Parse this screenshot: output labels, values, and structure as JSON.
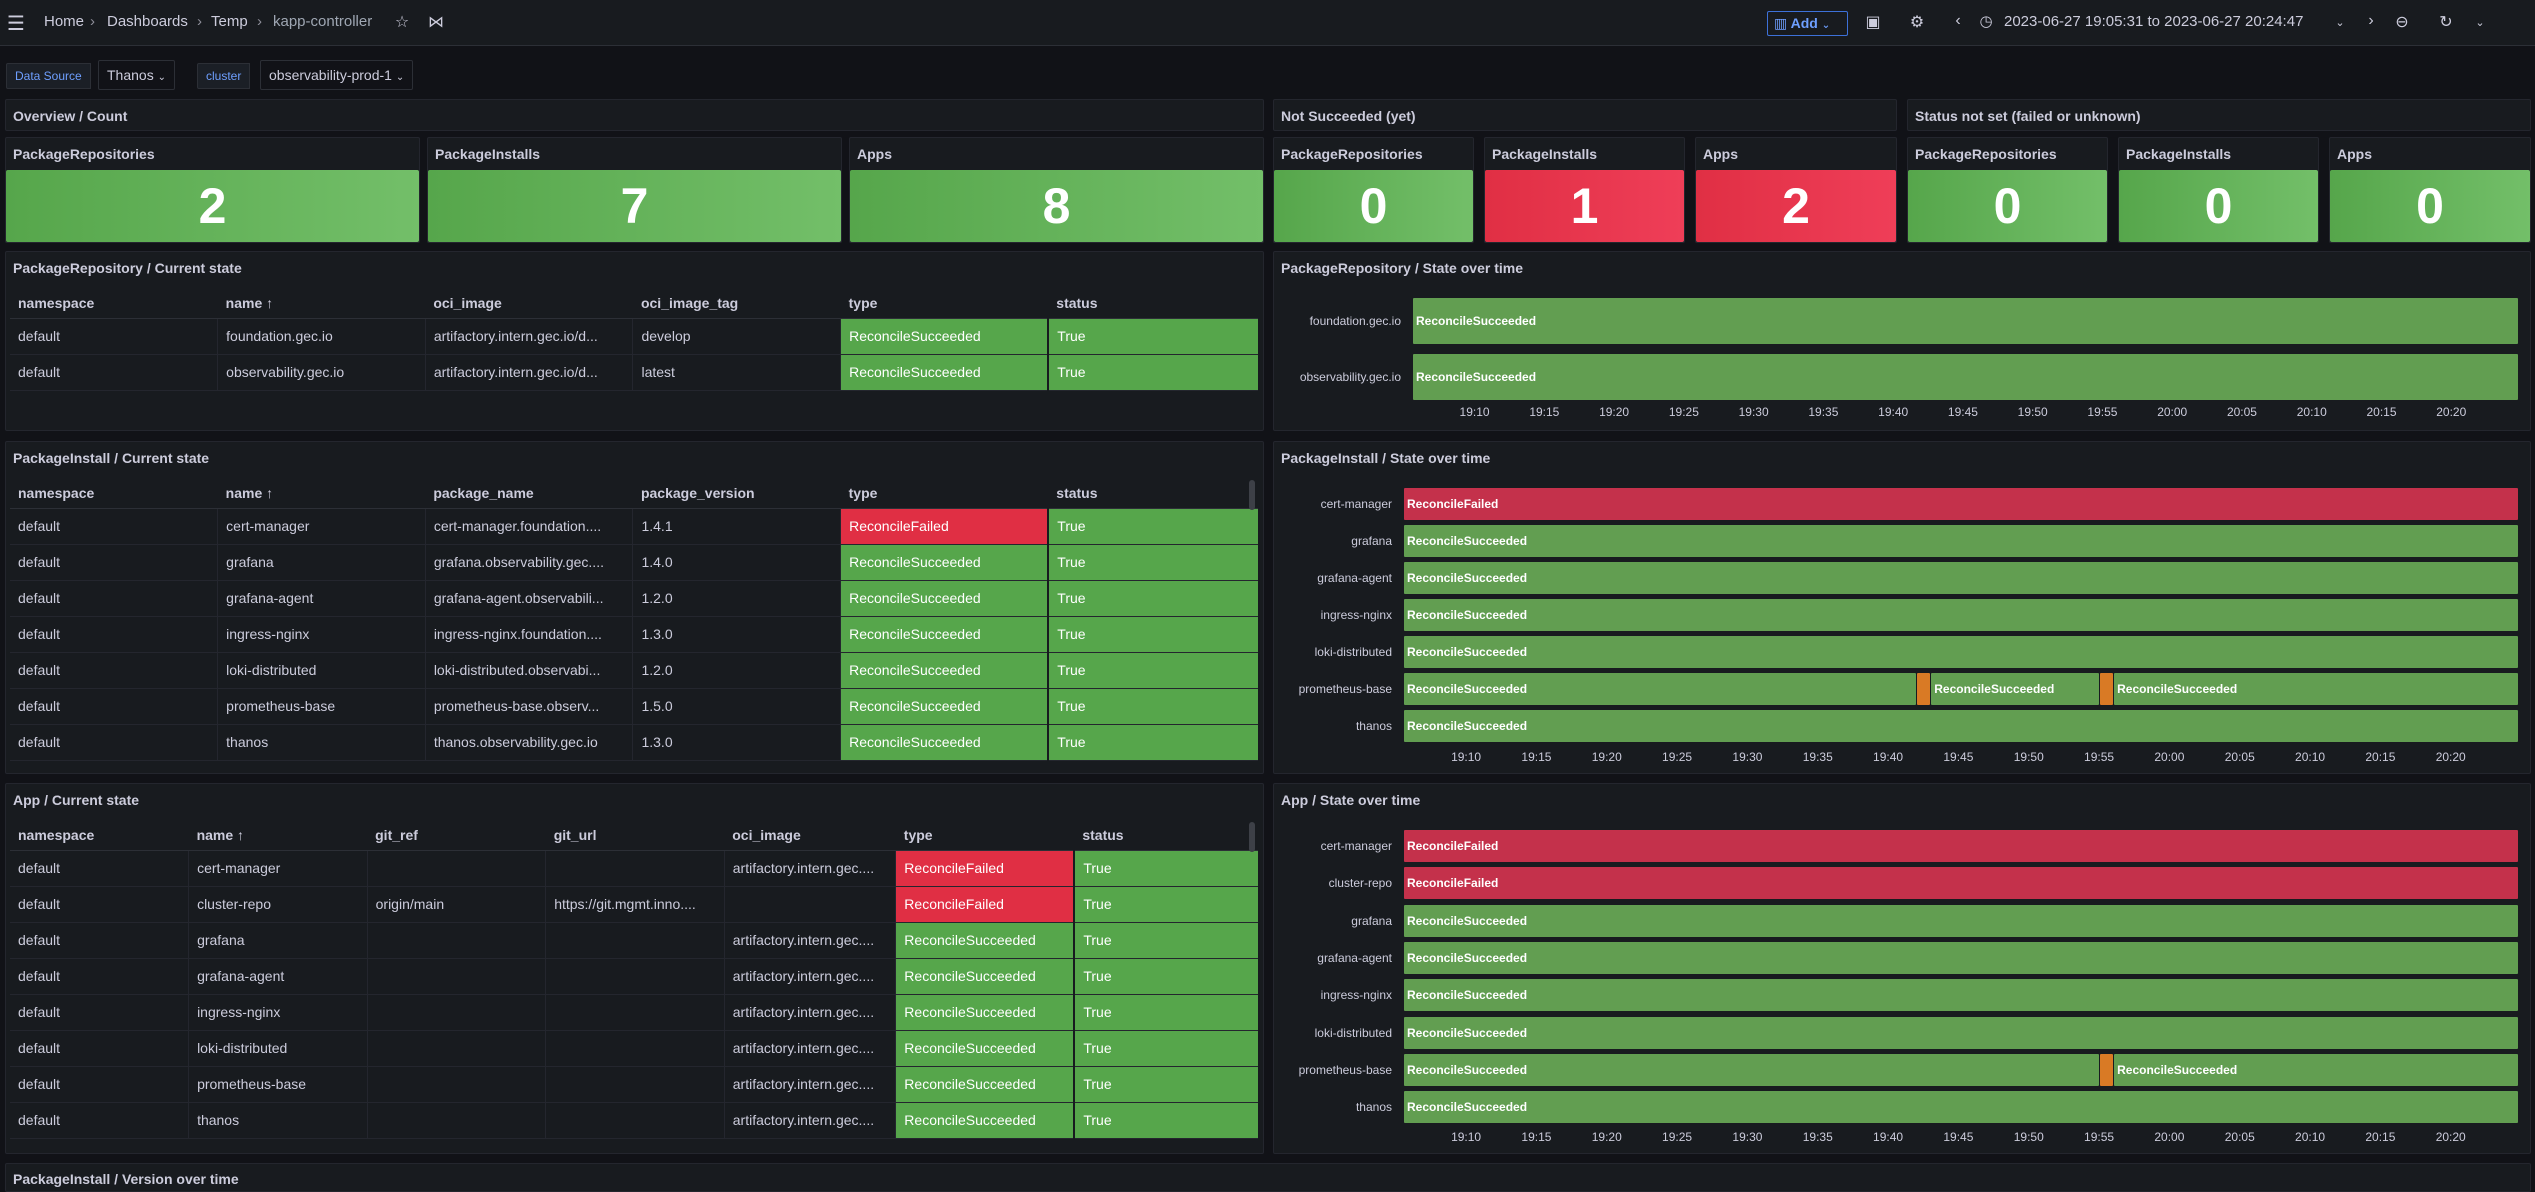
{
  "topbar": {
    "breadcrumb": [
      "Home",
      "Dashboards",
      "Temp",
      "kapp-controller"
    ],
    "add_label": "Add",
    "time_range": "2023-06-27 19:05:31 to 2023-06-27 20:24:47"
  },
  "variables": [
    {
      "label": "Data Source",
      "value": "Thanos"
    },
    {
      "label": "cluster",
      "value": "observability-prod-1"
    }
  ],
  "rows": {
    "overview": "Overview / Count",
    "not_succeeded": "Not Succeeded (yet)",
    "status_not_set": "Status not set (failed or unknown)",
    "version_over_time": "PackageInstall / Version over time"
  },
  "stats": [
    {
      "title": "PackageRepositories",
      "value": "2",
      "color": "#56a64b"
    },
    {
      "title": "PackageInstalls",
      "value": "7",
      "color": "#56a64b"
    },
    {
      "title": "Apps",
      "value": "8",
      "color": "#56a64b"
    },
    {
      "title": "PackageRepositories",
      "value": "0",
      "color": "#56a64b"
    },
    {
      "title": "PackageInstalls",
      "value": "1",
      "color": "#e02f44"
    },
    {
      "title": "Apps",
      "value": "2",
      "color": "#e02f44"
    },
    {
      "title": "PackageRepositories",
      "value": "0",
      "color": "#56a64b"
    },
    {
      "title": "PackageInstalls",
      "value": "0",
      "color": "#56a64b"
    },
    {
      "title": "Apps",
      "value": "0",
      "color": "#56a64b"
    }
  ],
  "repo_table": {
    "title": "PackageRepository / Current state",
    "columns": [
      "namespace",
      "name",
      "oci_image",
      "oci_image_tag",
      "type",
      "status"
    ],
    "rows": [
      [
        "default",
        "foundation.gec.io",
        "artifactory.intern.gec.io/d...",
        "develop",
        "ReconcileSucceeded",
        "True"
      ],
      [
        "default",
        "observability.gec.io",
        "artifactory.intern.gec.io/d...",
        "latest",
        "ReconcileSucceeded",
        "True"
      ]
    ]
  },
  "pi_table": {
    "title": "PackageInstall / Current state",
    "columns": [
      "namespace",
      "name",
      "package_name",
      "package_version",
      "type",
      "status"
    ],
    "rows": [
      [
        "default",
        "cert-manager",
        "cert-manager.foundation....",
        "1.4.1",
        "ReconcileFailed",
        "True"
      ],
      [
        "default",
        "grafana",
        "grafana.observability.gec....",
        "1.4.0",
        "ReconcileSucceeded",
        "True"
      ],
      [
        "default",
        "grafana-agent",
        "grafana-agent.observabili...",
        "1.2.0",
        "ReconcileSucceeded",
        "True"
      ],
      [
        "default",
        "ingress-nginx",
        "ingress-nginx.foundation....",
        "1.3.0",
        "ReconcileSucceeded",
        "True"
      ],
      [
        "default",
        "loki-distributed",
        "loki-distributed.observabi...",
        "1.2.0",
        "ReconcileSucceeded",
        "True"
      ],
      [
        "default",
        "prometheus-base",
        "prometheus-base.observ...",
        "1.5.0",
        "ReconcileSucceeded",
        "True"
      ],
      [
        "default",
        "thanos",
        "thanos.observability.gec.io",
        "1.3.0",
        "ReconcileSucceeded",
        "True"
      ]
    ]
  },
  "app_table": {
    "title": "App / Current state",
    "columns": [
      "namespace",
      "name",
      "git_ref",
      "git_url",
      "oci_image",
      "type",
      "status"
    ],
    "rows": [
      [
        "default",
        "cert-manager",
        "",
        "",
        "artifactory.intern.gec....",
        "ReconcileFailed",
        "True"
      ],
      [
        "default",
        "cluster-repo",
        "origin/main",
        "https://git.mgmt.inno....",
        "",
        "ReconcileFailed",
        "True"
      ],
      [
        "default",
        "grafana",
        "",
        "",
        "artifactory.intern.gec....",
        "ReconcileSucceeded",
        "True"
      ],
      [
        "default",
        "grafana-agent",
        "",
        "",
        "artifactory.intern.gec....",
        "ReconcileSucceeded",
        "True"
      ],
      [
        "default",
        "ingress-nginx",
        "",
        "",
        "artifactory.intern.gec....",
        "ReconcileSucceeded",
        "True"
      ],
      [
        "default",
        "loki-distributed",
        "",
        "",
        "artifactory.intern.gec....",
        "ReconcileSucceeded",
        "True"
      ],
      [
        "default",
        "prometheus-base",
        "",
        "",
        "artifactory.intern.gec....",
        "ReconcileSucceeded",
        "True"
      ],
      [
        "default",
        "thanos",
        "",
        "",
        "artifactory.intern.gec....",
        "ReconcileSucceeded",
        "True"
      ]
    ]
  },
  "chart_data": [
    {
      "type": "state-timeline",
      "title": "PackageRepository / State over time",
      "x_ticks": [
        "19:10",
        "19:15",
        "19:20",
        "19:25",
        "19:30",
        "19:35",
        "19:40",
        "19:45",
        "19:50",
        "19:55",
        "20:00",
        "20:05",
        "20:10",
        "20:15",
        "20:20"
      ],
      "series": [
        {
          "name": "foundation.gec.io",
          "segments": [
            {
              "from": "19:05:31",
              "to": "20:24:47",
              "state": "ReconcileSucceeded"
            }
          ]
        },
        {
          "name": "observability.gec.io",
          "segments": [
            {
              "from": "19:05:31",
              "to": "20:24:47",
              "state": "ReconcileSucceeded"
            }
          ]
        }
      ]
    },
    {
      "type": "state-timeline",
      "title": "PackageInstall / State over time",
      "x_ticks": [
        "19:10",
        "19:15",
        "19:20",
        "19:25",
        "19:30",
        "19:35",
        "19:40",
        "19:45",
        "19:50",
        "19:55",
        "20:00",
        "20:05",
        "20:10",
        "20:15",
        "20:20"
      ],
      "series": [
        {
          "name": "cert-manager",
          "segments": [
            {
              "from": "19:05:31",
              "to": "20:24:47",
              "state": "ReconcileFailed"
            }
          ]
        },
        {
          "name": "grafana",
          "segments": [
            {
              "from": "19:05:31",
              "to": "20:24:47",
              "state": "ReconcileSucceeded"
            }
          ]
        },
        {
          "name": "grafana-agent",
          "segments": [
            {
              "from": "19:05:31",
              "to": "20:24:47",
              "state": "ReconcileSucceeded"
            }
          ]
        },
        {
          "name": "ingress-nginx",
          "segments": [
            {
              "from": "19:05:31",
              "to": "20:24:47",
              "state": "ReconcileSucceeded"
            }
          ]
        },
        {
          "name": "loki-distributed",
          "segments": [
            {
              "from": "19:05:31",
              "to": "20:24:47",
              "state": "ReconcileSucceeded"
            }
          ]
        },
        {
          "name": "prometheus-base",
          "segments": [
            {
              "from": "19:05:31",
              "to": "19:42:00",
              "state": "ReconcileSucceeded"
            },
            {
              "from": "19:42:00",
              "to": "19:43:00",
              "state": "Reconciling"
            },
            {
              "from": "19:43:00",
              "to": "19:55:00",
              "state": "ReconcileSucceeded"
            },
            {
              "from": "19:55:00",
              "to": "19:56:00",
              "state": "Reconciling"
            },
            {
              "from": "19:56:00",
              "to": "20:24:47",
              "state": "ReconcileSucceeded"
            }
          ]
        },
        {
          "name": "thanos",
          "segments": [
            {
              "from": "19:05:31",
              "to": "20:24:47",
              "state": "ReconcileSucceeded"
            }
          ]
        }
      ]
    },
    {
      "type": "state-timeline",
      "title": "App / State over time",
      "x_ticks": [
        "19:10",
        "19:15",
        "19:20",
        "19:25",
        "19:30",
        "19:35",
        "19:40",
        "19:45",
        "19:50",
        "19:55",
        "20:00",
        "20:05",
        "20:10",
        "20:15",
        "20:20"
      ],
      "series": [
        {
          "name": "cert-manager",
          "segments": [
            {
              "from": "19:05:31",
              "to": "20:24:47",
              "state": "ReconcileFailed"
            }
          ]
        },
        {
          "name": "cluster-repo",
          "segments": [
            {
              "from": "19:05:31",
              "to": "20:24:47",
              "state": "ReconcileFailed"
            }
          ]
        },
        {
          "name": "grafana",
          "segments": [
            {
              "from": "19:05:31",
              "to": "20:24:47",
              "state": "ReconcileSucceeded"
            }
          ]
        },
        {
          "name": "grafana-agent",
          "segments": [
            {
              "from": "19:05:31",
              "to": "20:24:47",
              "state": "ReconcileSucceeded"
            }
          ]
        },
        {
          "name": "ingress-nginx",
          "segments": [
            {
              "from": "19:05:31",
              "to": "20:24:47",
              "state": "ReconcileSucceeded"
            }
          ]
        },
        {
          "name": "loki-distributed",
          "segments": [
            {
              "from": "19:05:31",
              "to": "20:24:47",
              "state": "ReconcileSucceeded"
            }
          ]
        },
        {
          "name": "prometheus-base",
          "segments": [
            {
              "from": "19:05:31",
              "to": "19:55:00",
              "state": "ReconcileSucceeded"
            },
            {
              "from": "19:55:00",
              "to": "19:56:00",
              "state": "Reconciling"
            },
            {
              "from": "19:56:00",
              "to": "20:24:47",
              "state": "ReconcileSucceeded"
            }
          ]
        },
        {
          "name": "thanos",
          "segments": [
            {
              "from": "19:05:31",
              "to": "20:24:47",
              "state": "ReconcileSucceeded"
            }
          ]
        }
      ]
    }
  ],
  "colors": {
    "ReconcileSucceeded": "#629e51",
    "ReconcileFailed": "#c4314b",
    "Reconciling": "#d97a25"
  }
}
